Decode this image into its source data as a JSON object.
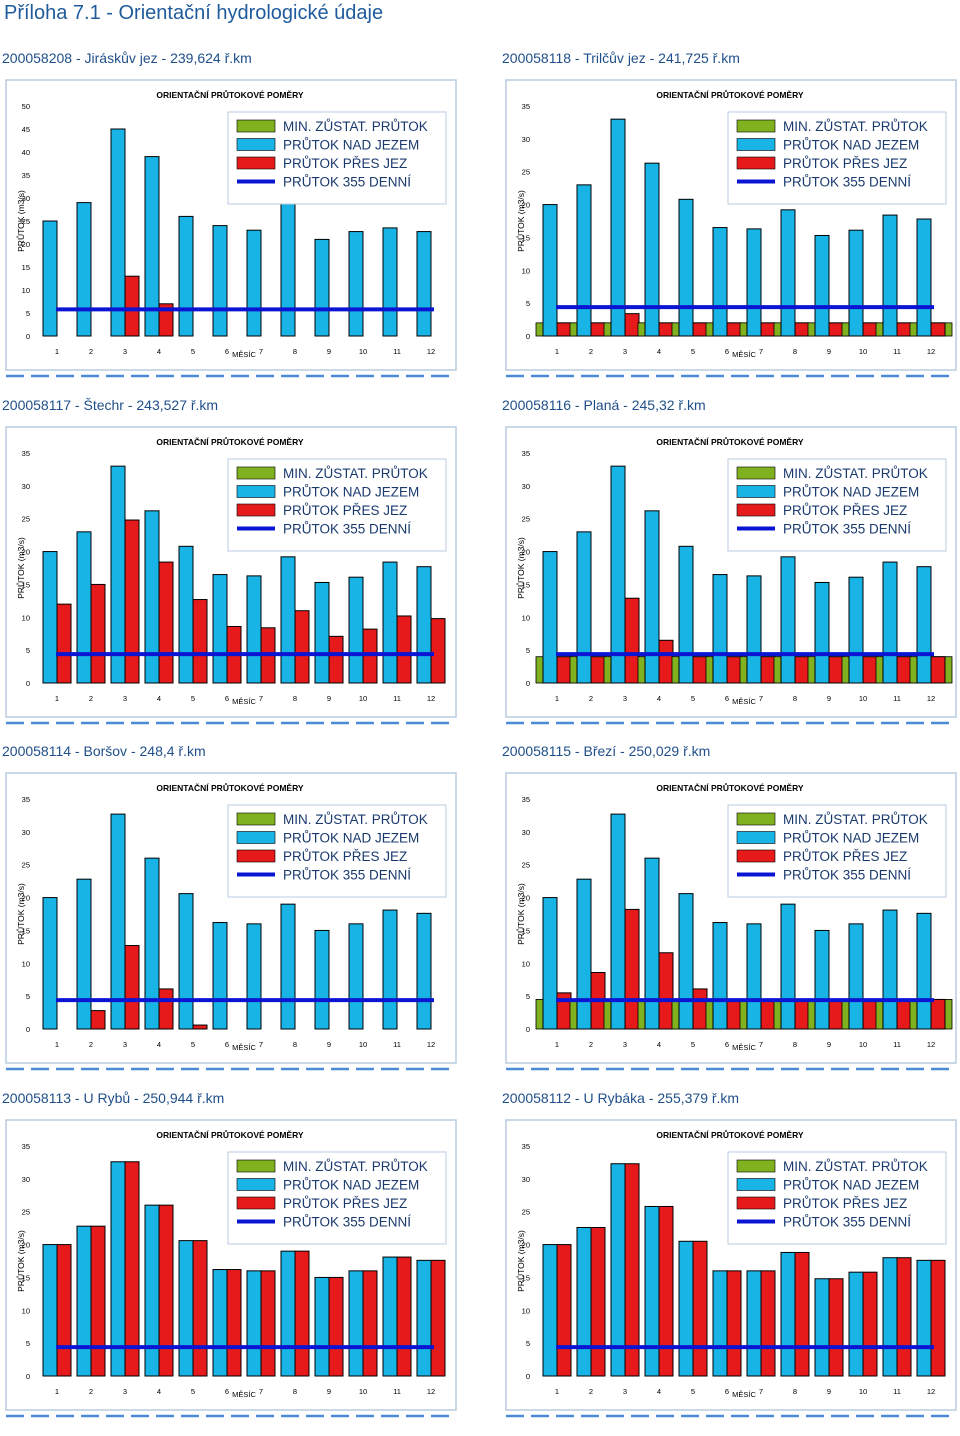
{
  "page": {
    "title": "Příloha 7.1 - Orientační hydrologické údaje"
  },
  "colors": {
    "nad_jezem": "#19b4e6",
    "pres_jez": "#e61a1a",
    "min_zust": "#7fb21e",
    "line_355": "#0a14d2",
    "frame": "#b8cbe0",
    "dash": "#4a8ad6"
  },
  "chart_data": [
    {
      "type": "bar",
      "station": "200058208 - Jiráskův jez - 239,624 ř.km",
      "title": "ORIENTAČNÍ PRŮTOKOVÉ POMĚRY",
      "xlabel": "MĚSÍC",
      "ylabel": "PRŮTOK (m3/s)",
      "ylim": [
        0,
        50
      ],
      "yticks": [
        0,
        5,
        10,
        15,
        20,
        25,
        30,
        35,
        40,
        45,
        50
      ],
      "categories": [
        "1",
        "2",
        "3",
        "4",
        "5",
        "6",
        "7",
        "8",
        "9",
        "10",
        "11",
        "12"
      ],
      "legend": [
        "MIN. ZŮSTAT. PRŮTOK",
        "PRŮTOK NAD JEZEM",
        "PRŮTOK PŘES JEZ",
        "PRŮTOK 355 DENNÍ"
      ],
      "series": [
        {
          "name": "MIN. ZŮSTAT. PRŮTOK",
          "values": [
            0,
            0,
            0,
            0,
            0,
            0,
            0,
            0,
            0,
            0,
            0,
            0
          ]
        },
        {
          "name": "PRŮTOK NAD JEZEM",
          "values": [
            25,
            29,
            45,
            39,
            26,
            24,
            23,
            31.2,
            21,
            22.7,
            23.5,
            22.7
          ]
        },
        {
          "name": "PRŮTOK PŘES JEZ",
          "values": [
            0,
            0,
            13,
            7,
            0,
            0,
            0,
            0,
            0,
            0,
            0,
            0
          ]
        },
        {
          "name": "PRŮTOK 355 DENNÍ",
          "value": 5.8
        }
      ]
    },
    {
      "type": "bar",
      "station": "200058118 - Trilčův jez - 241,725 ř.km",
      "title": "ORIENTAČNÍ PRŮTOKOVÉ POMĚRY",
      "xlabel": "MĚSÍC",
      "ylabel": "PRŮTOK (m3/s)",
      "ylim": [
        0,
        35
      ],
      "yticks": [
        0,
        5,
        10,
        15,
        20,
        25,
        30,
        35
      ],
      "categories": [
        "1",
        "2",
        "3",
        "4",
        "5",
        "6",
        "7",
        "8",
        "9",
        "10",
        "11",
        "12"
      ],
      "legend": [
        "MIN. ZŮSTAT. PRŮTOK",
        "PRŮTOK NAD JEZEM",
        "PRŮTOK PŘES JEZ",
        "PRŮTOK 355 DENNÍ"
      ],
      "series": [
        {
          "name": "MIN. ZŮSTAT. PRŮTOK",
          "values": [
            2,
            2,
            2,
            2,
            2,
            2,
            2,
            2,
            2,
            2,
            2,
            2
          ]
        },
        {
          "name": "PRŮTOK NAD JEZEM",
          "values": [
            20,
            23,
            33,
            26.3,
            20.8,
            16.5,
            16.3,
            19.2,
            15.3,
            16.1,
            18.4,
            17.8
          ]
        },
        {
          "name": "PRŮTOK PŘES JEZ",
          "values": [
            2,
            2,
            3.4,
            2,
            2,
            2,
            2,
            2,
            2,
            2,
            2,
            2
          ]
        },
        {
          "name": "PRŮTOK 355 DENNÍ",
          "value": 4.4
        }
      ]
    },
    {
      "type": "bar",
      "station": "200058117 - Štechr - 243,527 ř.km",
      "title": "ORIENTAČNÍ PRŮTOKOVÉ POMĚRY",
      "xlabel": "MĚSÍC",
      "ylabel": "PRŮTOK (m3/s)",
      "ylim": [
        0,
        35
      ],
      "yticks": [
        0,
        5,
        10,
        15,
        20,
        25,
        30,
        35
      ],
      "categories": [
        "1",
        "2",
        "3",
        "4",
        "5",
        "6",
        "7",
        "8",
        "9",
        "10",
        "11",
        "12"
      ],
      "legend": [
        "MIN. ZŮSTAT. PRŮTOK",
        "PRŮTOK NAD JEZEM",
        "PRŮTOK PŘES JEZ",
        "PRŮTOK 355 DENNÍ"
      ],
      "series": [
        {
          "name": "MIN. ZŮSTAT. PRŮTOK",
          "values": [
            0,
            0,
            0,
            0,
            0,
            0,
            0,
            0,
            0,
            0,
            0,
            0
          ]
        },
        {
          "name": "PRŮTOK NAD JEZEM",
          "values": [
            20,
            23,
            33,
            26.2,
            20.8,
            16.5,
            16.3,
            19.2,
            15.3,
            16.1,
            18.4,
            17.7
          ]
        },
        {
          "name": "PRŮTOK PŘES JEZ",
          "values": [
            12,
            15,
            24.8,
            18.4,
            12.7,
            8.6,
            8.4,
            11,
            7.1,
            8.2,
            10.2,
            9.8
          ]
        },
        {
          "name": "PRŮTOK 355 DENNÍ",
          "value": 4.4
        }
      ]
    },
    {
      "type": "bar",
      "station": "200058116 - Planá - 245,32 ř.km",
      "title": "ORIENTAČNÍ PRŮTOKOVÉ POMĚRY",
      "xlabel": "MĚSÍC",
      "ylabel": "PRŮTOK (m3/s)",
      "ylim": [
        0,
        35
      ],
      "yticks": [
        0,
        5,
        10,
        15,
        20,
        25,
        30,
        35
      ],
      "categories": [
        "1",
        "2",
        "3",
        "4",
        "5",
        "6",
        "7",
        "8",
        "9",
        "10",
        "11",
        "12"
      ],
      "legend": [
        "MIN. ZŮSTAT. PRŮTOK",
        "PRŮTOK NAD JEZEM",
        "PRŮTOK PŘES JEZ",
        "PRŮTOK 355 DENNÍ"
      ],
      "series": [
        {
          "name": "MIN. ZŮSTAT. PRŮTOK",
          "values": [
            4,
            4,
            4,
            4,
            4,
            4,
            4,
            4,
            4,
            4,
            4,
            4
          ]
        },
        {
          "name": "PRŮTOK NAD JEZEM",
          "values": [
            20,
            23,
            33,
            26.2,
            20.8,
            16.5,
            16.3,
            19.2,
            15.3,
            16.1,
            18.4,
            17.7
          ]
        },
        {
          "name": "PRŮTOK PŘES JEZ",
          "values": [
            4,
            4,
            12.9,
            6.5,
            4,
            4,
            4,
            4,
            4,
            4,
            4,
            4
          ]
        },
        {
          "name": "PRŮTOK 355 DENNÍ",
          "value": 4.4
        }
      ]
    },
    {
      "type": "bar",
      "station": "200058114 - Boršov - 248,4 ř.km",
      "title": "ORIENTAČNÍ PRŮTOKOVÉ POMĚRY",
      "xlabel": "MĚSÍC",
      "ylabel": "PRŮTOK (m3/s)",
      "ylim": [
        0,
        35
      ],
      "yticks": [
        0,
        5,
        10,
        15,
        20,
        25,
        30,
        35
      ],
      "categories": [
        "1",
        "2",
        "3",
        "4",
        "5",
        "6",
        "7",
        "8",
        "9",
        "10",
        "11",
        "12"
      ],
      "legend": [
        "MIN. ZŮSTAT. PRŮTOK",
        "PRŮTOK NAD JEZEM",
        "PRŮTOK PŘES JEZ",
        "PRŮTOK 355 DENNÍ"
      ],
      "series": [
        {
          "name": "MIN. ZŮSTAT. PRŮTOK",
          "values": [
            0,
            0,
            0,
            0,
            0,
            0,
            0,
            0,
            0,
            0,
            0,
            0
          ]
        },
        {
          "name": "PRŮTOK NAD JEZEM",
          "values": [
            20,
            22.8,
            32.7,
            26,
            20.6,
            16.2,
            16,
            19,
            15,
            16,
            18.1,
            17.6
          ]
        },
        {
          "name": "PRŮTOK PŘES JEZ",
          "values": [
            0,
            2.8,
            12.7,
            6.1,
            0.6,
            0,
            0,
            0,
            0,
            0,
            0,
            0
          ]
        },
        {
          "name": "PRŮTOK 355 DENNÍ",
          "value": 4.4
        }
      ]
    },
    {
      "type": "bar",
      "station": "200058115 - Březí - 250,029 ř.km",
      "title": "ORIENTAČNÍ PRŮTOKOVÉ POMĚRY",
      "xlabel": "MĚSÍC",
      "ylabel": "PRŮTOK (m3/s)",
      "ylim": [
        0,
        35
      ],
      "yticks": [
        0,
        5,
        10,
        15,
        20,
        25,
        30,
        35
      ],
      "categories": [
        "1",
        "2",
        "3",
        "4",
        "5",
        "6",
        "7",
        "8",
        "9",
        "10",
        "11",
        "12"
      ],
      "legend": [
        "MIN. ZŮSTAT. PRŮTOK",
        "PRŮTOK NAD JEZEM",
        "PRŮTOK PŘES JEZ",
        "PRŮTOK 355 DENNÍ"
      ],
      "series": [
        {
          "name": "MIN. ZŮSTAT. PRŮTOK",
          "values": [
            4.5,
            4.5,
            4.5,
            4.5,
            4.5,
            4.5,
            4.5,
            4.5,
            4.5,
            4.5,
            4.5,
            4.5
          ]
        },
        {
          "name": "PRŮTOK NAD JEZEM",
          "values": [
            20,
            22.8,
            32.7,
            26,
            20.6,
            16.2,
            16,
            19,
            15,
            16,
            18.1,
            17.6
          ]
        },
        {
          "name": "PRŮTOK PŘES JEZ",
          "values": [
            5.5,
            8.6,
            18.2,
            11.6,
            6.1,
            4.5,
            4.5,
            4.5,
            4.5,
            4.5,
            4.5,
            4.5
          ]
        },
        {
          "name": "PRŮTOK 355 DENNÍ",
          "value": 4.4
        }
      ]
    },
    {
      "type": "bar",
      "station": "200058113 - U Rybů - 250,944 ř.km",
      "title": "ORIENTAČNÍ PRŮTOKOVÉ POMĚRY",
      "xlabel": "MĚSÍC",
      "ylabel": "PRŮTOK (m3/s)",
      "ylim": [
        0,
        35
      ],
      "yticks": [
        0,
        5,
        10,
        15,
        20,
        25,
        30,
        35
      ],
      "categories": [
        "1",
        "2",
        "3",
        "4",
        "5",
        "6",
        "7",
        "8",
        "9",
        "10",
        "11",
        "12"
      ],
      "legend": [
        "MIN. ZŮSTAT. PRŮTOK",
        "PRŮTOK NAD JEZEM",
        "PRŮTOK PŘES JEZ",
        "PRŮTOK 355 DENNÍ"
      ],
      "series": [
        {
          "name": "MIN. ZŮSTAT. PRŮTOK",
          "values": [
            0,
            0,
            0,
            0,
            0,
            0,
            0,
            0,
            0,
            0,
            0,
            0
          ]
        },
        {
          "name": "PRŮTOK NAD JEZEM",
          "values": [
            20,
            22.8,
            32.6,
            26,
            20.6,
            16.2,
            16,
            19,
            15,
            16,
            18.1,
            17.6
          ]
        },
        {
          "name": "PRŮTOK PŘES JEZ",
          "values": [
            20,
            22.8,
            32.6,
            26,
            20.6,
            16.2,
            16,
            19,
            15,
            16,
            18.1,
            17.6
          ]
        },
        {
          "name": "PRŮTOK 355 DENNÍ",
          "value": 4.4
        }
      ]
    },
    {
      "type": "bar",
      "station": "200058112 - U Rybáka - 255,379 ř.km",
      "title": "ORIENTAČNÍ PRŮTOKOVÉ POMĚRY",
      "xlabel": "MĚSÍC",
      "ylabel": "PRŮTOK (m3/s)",
      "ylim": [
        0,
        35
      ],
      "yticks": [
        0,
        5,
        10,
        15,
        20,
        25,
        30,
        35
      ],
      "categories": [
        "1",
        "2",
        "3",
        "4",
        "5",
        "6",
        "7",
        "8",
        "9",
        "10",
        "11",
        "12"
      ],
      "legend": [
        "MIN. ZŮSTAT. PRŮTOK",
        "PRŮTOK NAD JEZEM",
        "PRŮTOK PŘES JEZ",
        "PRŮTOK 355 DENNÍ"
      ],
      "series": [
        {
          "name": "MIN. ZŮSTAT. PRŮTOK",
          "values": [
            0,
            0,
            0,
            0,
            0,
            0,
            0,
            0,
            0,
            0,
            0,
            0
          ]
        },
        {
          "name": "PRŮTOK NAD JEZEM",
          "values": [
            20,
            22.6,
            32.3,
            25.8,
            20.5,
            16,
            16,
            18.8,
            14.8,
            15.8,
            18,
            17.6
          ]
        },
        {
          "name": "PRŮTOK PŘES JEZ",
          "values": [
            20,
            22.6,
            32.3,
            25.8,
            20.5,
            16,
            16,
            18.8,
            14.8,
            15.8,
            18,
            17.6
          ]
        },
        {
          "name": "PRŮTOK 355 DENNÍ",
          "value": 4.4
        }
      ]
    }
  ]
}
